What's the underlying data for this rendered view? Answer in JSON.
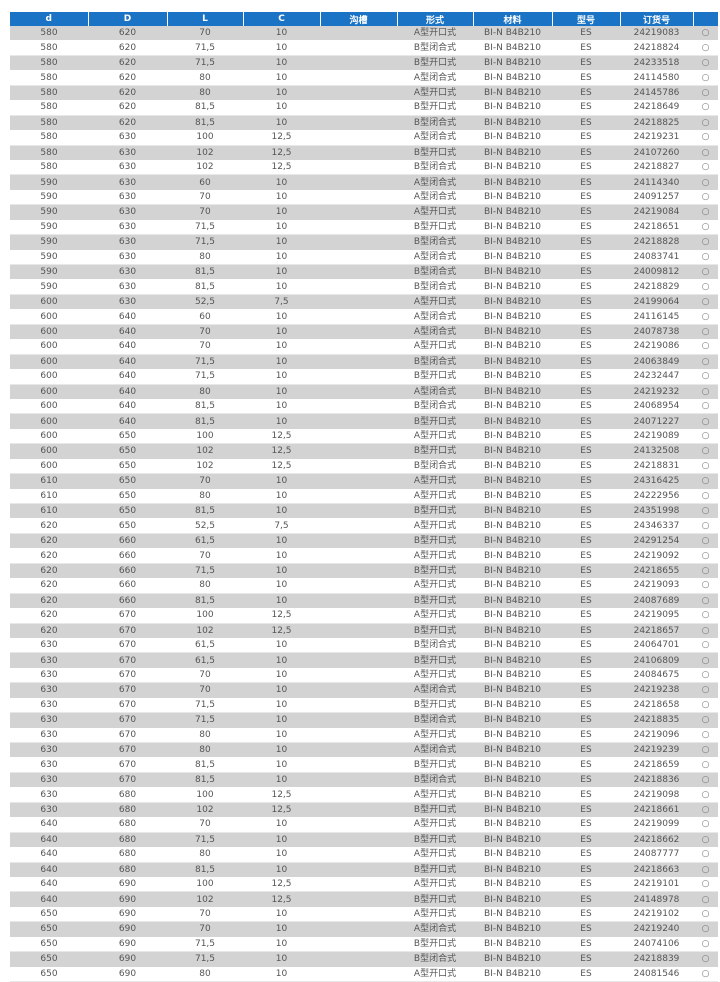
{
  "colors": {
    "header_bg": "#1a73c4",
    "row_alt_bg": "#d3d3d3"
  },
  "table": {
    "headers": [
      "d",
      "D",
      "L",
      "C",
      "沟槽",
      "形式",
      "材料",
      "型号",
      "订货号",
      ""
    ],
    "select_icon": "○",
    "rows": [
      [
        "580",
        "620",
        "70",
        "10",
        "",
        "A型开口式",
        "BI-N B4B210",
        "ES",
        "24219083"
      ],
      [
        "580",
        "620",
        "71,5",
        "10",
        "",
        "B型闭合式",
        "BI-N B4B210",
        "ES",
        "24218824"
      ],
      [
        "580",
        "620",
        "71,5",
        "10",
        "",
        "B型开口式",
        "BI-N B4B210",
        "ES",
        "24233518"
      ],
      [
        "580",
        "620",
        "80",
        "10",
        "",
        "A型闭合式",
        "BI-N B4B210",
        "ES",
        "24114580"
      ],
      [
        "580",
        "620",
        "80",
        "10",
        "",
        "A型开口式",
        "BI-N B4B210",
        "ES",
        "24145786"
      ],
      [
        "580",
        "620",
        "81,5",
        "10",
        "",
        "B型开口式",
        "BI-N B4B210",
        "ES",
        "24218649"
      ],
      [
        "580",
        "620",
        "81,5",
        "10",
        "",
        "B型闭合式",
        "BI-N B4B210",
        "ES",
        "24218825"
      ],
      [
        "580",
        "630",
        "100",
        "12,5",
        "",
        "A型闭合式",
        "BI-N B4B210",
        "ES",
        "24219231"
      ],
      [
        "580",
        "630",
        "102",
        "12,5",
        "",
        "B型开口式",
        "BI-N B4B210",
        "ES",
        "24107260"
      ],
      [
        "580",
        "630",
        "102",
        "12,5",
        "",
        "B型闭合式",
        "BI-N B4B210",
        "ES",
        "24218827"
      ],
      [
        "590",
        "630",
        "60",
        "10",
        "",
        "A型闭合式",
        "BI-N B4B210",
        "ES",
        "24114340"
      ],
      [
        "590",
        "630",
        "70",
        "10",
        "",
        "A型闭合式",
        "BI-N B4B210",
        "ES",
        "24091257"
      ],
      [
        "590",
        "630",
        "70",
        "10",
        "",
        "A型开口式",
        "BI-N B4B210",
        "ES",
        "24219084"
      ],
      [
        "590",
        "630",
        "71,5",
        "10",
        "",
        "B型开口式",
        "BI-N B4B210",
        "ES",
        "24218651"
      ],
      [
        "590",
        "630",
        "71,5",
        "10",
        "",
        "B型闭合式",
        "BI-N B4B210",
        "ES",
        "24218828"
      ],
      [
        "590",
        "630",
        "80",
        "10",
        "",
        "A型闭合式",
        "BI-N B4B210",
        "ES",
        "24083741"
      ],
      [
        "590",
        "630",
        "81,5",
        "10",
        "",
        "B型闭合式",
        "BI-N B4B210",
        "ES",
        "24009812"
      ],
      [
        "590",
        "630",
        "81,5",
        "10",
        "",
        "B型闭合式",
        "BI-N B4B210",
        "ES",
        "24218829"
      ],
      [
        "600",
        "630",
        "52,5",
        "7,5",
        "",
        "A型开口式",
        "BI-N B4B210",
        "ES",
        "24199064"
      ],
      [
        "600",
        "640",
        "60",
        "10",
        "",
        "A型闭合式",
        "BI-N B4B210",
        "ES",
        "24116145"
      ],
      [
        "600",
        "640",
        "70",
        "10",
        "",
        "A型闭合式",
        "BI-N B4B210",
        "ES",
        "24078738"
      ],
      [
        "600",
        "640",
        "70",
        "10",
        "",
        "A型开口式",
        "BI-N B4B210",
        "ES",
        "24219086"
      ],
      [
        "600",
        "640",
        "71,5",
        "10",
        "",
        "B型闭合式",
        "BI-N B4B210",
        "ES",
        "24063849"
      ],
      [
        "600",
        "640",
        "71,5",
        "10",
        "",
        "B型开口式",
        "BI-N B4B210",
        "ES",
        "24232447"
      ],
      [
        "600",
        "640",
        "80",
        "10",
        "",
        "A型闭合式",
        "BI-N B4B210",
        "ES",
        "24219232"
      ],
      [
        "600",
        "640",
        "81,5",
        "10",
        "",
        "B型闭合式",
        "BI-N B4B210",
        "ES",
        "24068954"
      ],
      [
        "600",
        "640",
        "81,5",
        "10",
        "",
        "B型开口式",
        "BI-N B4B210",
        "ES",
        "24071227"
      ],
      [
        "600",
        "650",
        "100",
        "12,5",
        "",
        "A型开口式",
        "BI-N B4B210",
        "ES",
        "24219089"
      ],
      [
        "600",
        "650",
        "102",
        "12,5",
        "",
        "B型开口式",
        "BI-N B4B210",
        "ES",
        "24132508"
      ],
      [
        "600",
        "650",
        "102",
        "12,5",
        "",
        "B型闭合式",
        "BI-N B4B210",
        "ES",
        "24218831"
      ],
      [
        "610",
        "650",
        "70",
        "10",
        "",
        "A型开口式",
        "BI-N B4B210",
        "ES",
        "24316425"
      ],
      [
        "610",
        "650",
        "80",
        "10",
        "",
        "A型开口式",
        "BI-N B4B210",
        "ES",
        "24222956"
      ],
      [
        "610",
        "650",
        "81,5",
        "10",
        "",
        "B型开口式",
        "BI-N B4B210",
        "ES",
        "24351998"
      ],
      [
        "620",
        "650",
        "52,5",
        "7,5",
        "",
        "A型开口式",
        "BI-N B4B210",
        "ES",
        "24346337"
      ],
      [
        "620",
        "660",
        "61,5",
        "10",
        "",
        "B型开口式",
        "BI-N B4B210",
        "ES",
        "24291254"
      ],
      [
        "620",
        "660",
        "70",
        "10",
        "",
        "A型开口式",
        "BI-N B4B210",
        "ES",
        "24219092"
      ],
      [
        "620",
        "660",
        "71,5",
        "10",
        "",
        "B型开口式",
        "BI-N B4B210",
        "ES",
        "24218655"
      ],
      [
        "620",
        "660",
        "80",
        "10",
        "",
        "A型开口式",
        "BI-N B4B210",
        "ES",
        "24219093"
      ],
      [
        "620",
        "660",
        "81,5",
        "10",
        "",
        "B型开口式",
        "BI-N B4B210",
        "ES",
        "24087689"
      ],
      [
        "620",
        "670",
        "100",
        "12,5",
        "",
        "A型开口式",
        "BI-N B4B210",
        "ES",
        "24219095"
      ],
      [
        "620",
        "670",
        "102",
        "12,5",
        "",
        "B型开口式",
        "BI-N B4B210",
        "ES",
        "24218657"
      ],
      [
        "630",
        "670",
        "61,5",
        "10",
        "",
        "B型闭合式",
        "BI-N B4B210",
        "ES",
        "24064701"
      ],
      [
        "630",
        "670",
        "61,5",
        "10",
        "",
        "B型开口式",
        "BI-N B4B210",
        "ES",
        "24106809"
      ],
      [
        "630",
        "670",
        "70",
        "10",
        "",
        "A型开口式",
        "BI-N B4B210",
        "ES",
        "24084675"
      ],
      [
        "630",
        "670",
        "70",
        "10",
        "",
        "A型闭合式",
        "BI-N B4B210",
        "ES",
        "24219238"
      ],
      [
        "630",
        "670",
        "71,5",
        "10",
        "",
        "B型开口式",
        "BI-N B4B210",
        "ES",
        "24218658"
      ],
      [
        "630",
        "670",
        "71,5",
        "10",
        "",
        "B型闭合式",
        "BI-N B4B210",
        "ES",
        "24218835"
      ],
      [
        "630",
        "670",
        "80",
        "10",
        "",
        "A型开口式",
        "BI-N B4B210",
        "ES",
        "24219096"
      ],
      [
        "630",
        "670",
        "80",
        "10",
        "",
        "A型闭合式",
        "BI-N B4B210",
        "ES",
        "24219239"
      ],
      [
        "630",
        "670",
        "81,5",
        "10",
        "",
        "B型开口式",
        "BI-N B4B210",
        "ES",
        "24218659"
      ],
      [
        "630",
        "670",
        "81,5",
        "10",
        "",
        "B型闭合式",
        "BI-N B4B210",
        "ES",
        "24218836"
      ],
      [
        "630",
        "680",
        "100",
        "12,5",
        "",
        "A型开口式",
        "BI-N B4B210",
        "ES",
        "24219098"
      ],
      [
        "630",
        "680",
        "102",
        "12,5",
        "",
        "B型开口式",
        "BI-N B4B210",
        "ES",
        "24218661"
      ],
      [
        "640",
        "680",
        "70",
        "10",
        "",
        "A型开口式",
        "BI-N B4B210",
        "ES",
        "24219099"
      ],
      [
        "640",
        "680",
        "71,5",
        "10",
        "",
        "B型开口式",
        "BI-N B4B210",
        "ES",
        "24218662"
      ],
      [
        "640",
        "680",
        "80",
        "10",
        "",
        "A型开口式",
        "BI-N B4B210",
        "ES",
        "24087777"
      ],
      [
        "640",
        "680",
        "81,5",
        "10",
        "",
        "B型开口式",
        "BI-N B4B210",
        "ES",
        "24218663"
      ],
      [
        "640",
        "690",
        "100",
        "12,5",
        "",
        "A型开口式",
        "BI-N B4B210",
        "ES",
        "24219101"
      ],
      [
        "640",
        "690",
        "102",
        "12,5",
        "",
        "B型开口式",
        "BI-N B4B210",
        "ES",
        "24148978"
      ],
      [
        "650",
        "690",
        "70",
        "10",
        "",
        "A型开口式",
        "BI-N B4B210",
        "ES",
        "24219102"
      ],
      [
        "650",
        "690",
        "70",
        "10",
        "",
        "A型闭合式",
        "BI-N B4B210",
        "ES",
        "24219240"
      ],
      [
        "650",
        "690",
        "71,5",
        "10",
        "",
        "B型开口式",
        "BI-N B4B210",
        "ES",
        "24074106"
      ],
      [
        "650",
        "690",
        "71,5",
        "10",
        "",
        "B型闭合式",
        "BI-N B4B210",
        "ES",
        "24218839"
      ],
      [
        "650",
        "690",
        "80",
        "10",
        "",
        "A型开口式",
        "BI-N B4B210",
        "ES",
        "24081546"
      ]
    ]
  }
}
